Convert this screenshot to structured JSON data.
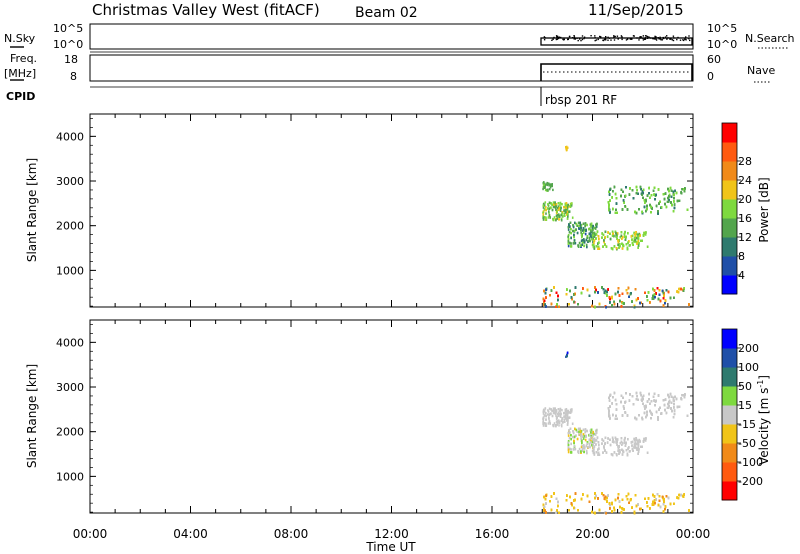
{
  "header": {
    "title": "Christmas Valley West (fitACF)",
    "beam": "Beam 02",
    "date": "11/Sep/2015"
  },
  "left_labels": {
    "nsky": "N.Sky",
    "freq": "Freq.",
    "freq_unit": "[MHz]",
    "cpid": "CPID"
  },
  "right_labels": {
    "nsearch": "N.Search",
    "nave": "Nave"
  },
  "strip_ticks": {
    "nsky": [
      "10^5",
      "10^0"
    ],
    "nsearch": [
      "10^5",
      "10^0"
    ],
    "freq": [
      "18",
      "8"
    ],
    "nave": [
      "60",
      "0"
    ]
  },
  "cpid_label": "rbsp 201 RF",
  "colors": {
    "power": [
      "#0000ff",
      "#1f4fa8",
      "#2e7a6e",
      "#53a54d",
      "#7ed93f",
      "#f0c419",
      "#f08a19",
      "#ff5a10",
      "#ff0000"
    ],
    "velocity": [
      "#ff0000",
      "#ff5a10",
      "#f08a19",
      "#f0c419",
      "#c8c8c8",
      "#7ed93f",
      "#2e7a6e",
      "#1f4fa8",
      "#0000ff"
    ]
  },
  "chart_data": [
    {
      "type": "heatmap",
      "title": "Power",
      "ylabel": "Slant Range [km]",
      "ylim": [
        180,
        4500
      ],
      "xlim": [
        0,
        24
      ],
      "yticks": [
        1000,
        2000,
        3000,
        4000
      ],
      "colorbar": {
        "label": "Power [dB]",
        "tick_labels": [
          "4",
          "8",
          "12",
          "16",
          "20",
          "24",
          "28"
        ],
        "range": [
          0,
          30
        ]
      },
      "clusters": [
        {
          "time": [
            18.0,
            18.4
          ],
          "range": [
            2800,
            3000
          ],
          "values": [
            10,
            14
          ]
        },
        {
          "time": [
            18.0,
            19.2
          ],
          "range": [
            2150,
            2550
          ],
          "values": [
            10,
            18
          ]
        },
        {
          "time": [
            19.0,
            20.2
          ],
          "range": [
            1550,
            2100
          ],
          "values": [
            6,
            16
          ]
        },
        {
          "time": [
            20.0,
            22.2
          ],
          "range": [
            1500,
            1900
          ],
          "values": [
            12,
            18
          ]
        },
        {
          "time": [
            20.6,
            23.8
          ],
          "range": [
            2300,
            2900
          ],
          "values": [
            8,
            16
          ]
        },
        {
          "time": [
            18.0,
            23.9
          ],
          "range": [
            200,
            650
          ],
          "values": [
            4,
            28
          ]
        },
        {
          "time": [
            18.9,
            19.0
          ],
          "range": [
            3700,
            3800
          ],
          "values": [
            18,
            20
          ]
        }
      ]
    },
    {
      "type": "heatmap",
      "title": "Velocity",
      "ylabel": "Slant Range [km]",
      "xlabel": "Time UT",
      "ylim": [
        180,
        4500
      ],
      "xlim": [
        0,
        24
      ],
      "yticks": [
        1000,
        2000,
        3000,
        4000
      ],
      "xtick_labels": [
        "00:00",
        "04:00",
        "08:00",
        "12:00",
        "16:00",
        "20:00",
        "00:00"
      ],
      "colorbar": {
        "label": "Velocity [m s^-1]",
        "tick_labels": [
          "-200",
          "-100",
          "-50",
          "-15",
          "15",
          "50",
          "100",
          "200"
        ],
        "range": [
          -250,
          250
        ]
      },
      "clusters": [
        {
          "time": [
            18.0,
            19.2
          ],
          "range": [
            2150,
            2550
          ],
          "values": [
            -15,
            15
          ]
        },
        {
          "time": [
            19.0,
            20.2
          ],
          "range": [
            1550,
            2100
          ],
          "values": [
            -50,
            50
          ]
        },
        {
          "time": [
            20.0,
            22.2
          ],
          "range": [
            1500,
            1900
          ],
          "values": [
            -15,
            15
          ]
        },
        {
          "time": [
            20.6,
            23.8
          ],
          "range": [
            2300,
            2900
          ],
          "values": [
            -15,
            15
          ]
        },
        {
          "time": [
            18.0,
            23.9
          ],
          "range": [
            200,
            650
          ],
          "values": [
            -100,
            -15
          ]
        },
        {
          "time": [
            18.9,
            19.0
          ],
          "range": [
            3700,
            3800
          ],
          "values": [
            100,
            200
          ]
        }
      ]
    }
  ]
}
